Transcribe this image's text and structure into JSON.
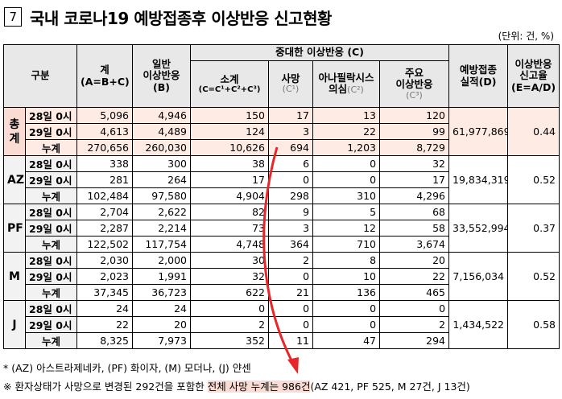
{
  "title_number": "7",
  "title": "국내 코로나19 예방접종후 이상반응 신고현황",
  "unit": "(단위: 건, %)",
  "headers": {
    "gubun": "구분",
    "total": "계",
    "total_sub": "(A=B+C)",
    "general": "일반",
    "general2": "이상반응",
    "general_sub": "(B)",
    "serious": "중대한 이상반응 (C)",
    "subtotal": "소계",
    "subtotal_sub": "(C=C¹+C²+C³)",
    "death": "사망",
    "death_sub": "(C¹)",
    "anaph": "아나필락시스",
    "anaph2": "의심",
    "anaph_sub": "(C²)",
    "major": "주요",
    "major2": "이상반응",
    "major_sub": "(C³)",
    "vacc": "예방접종",
    "vacc2": "실적(D)",
    "rate": "이상반응",
    "rate2": "신고율",
    "rate_sub": "(E=A/D)"
  },
  "groups": [
    {
      "name": "총계",
      "vaccinations": "61,977,869",
      "rate": "0.44",
      "rows": [
        {
          "label": "28일 0시",
          "cells": [
            "5,096",
            "4,946",
            "150",
            "17",
            "13",
            "120"
          ]
        },
        {
          "label": "29일 0시",
          "cells": [
            "4,613",
            "4,489",
            "124",
            "3",
            "22",
            "99"
          ]
        },
        {
          "label": "누계",
          "cells": [
            "270,656",
            "260,030",
            "10,626",
            "694",
            "1,203",
            "8,729"
          ]
        }
      ]
    },
    {
      "name": "AZ",
      "vaccinations": "19,834,319",
      "rate": "0.52",
      "rows": [
        {
          "label": "28일 0시",
          "cells": [
            "338",
            "300",
            "38",
            "6",
            "0",
            "32"
          ]
        },
        {
          "label": "29일 0시",
          "cells": [
            "281",
            "264",
            "17",
            "0",
            "0",
            "17"
          ]
        },
        {
          "label": "누계",
          "cells": [
            "102,484",
            "97,580",
            "4,904",
            "298",
            "310",
            "4,296"
          ]
        }
      ]
    },
    {
      "name": "PF",
      "vaccinations": "33,552,994",
      "rate": "0.37",
      "rows": [
        {
          "label": "28일 0시",
          "cells": [
            "2,704",
            "2,622",
            "82",
            "9",
            "5",
            "68"
          ]
        },
        {
          "label": "29일 0시",
          "cells": [
            "2,287",
            "2,214",
            "73",
            "3",
            "12",
            "58"
          ]
        },
        {
          "label": "누계",
          "cells": [
            "122,502",
            "117,754",
            "4,748",
            "364",
            "710",
            "3,674"
          ]
        }
      ]
    },
    {
      "name": "M",
      "vaccinations": "7,156,034",
      "rate": "0.52",
      "rows": [
        {
          "label": "28일 0시",
          "cells": [
            "2,030",
            "2,000",
            "30",
            "2",
            "8",
            "20"
          ]
        },
        {
          "label": "29일 0시",
          "cells": [
            "2,023",
            "1,991",
            "32",
            "0",
            "10",
            "22"
          ]
        },
        {
          "label": "누계",
          "cells": [
            "37,345",
            "36,723",
            "622",
            "21",
            "136",
            "465"
          ]
        }
      ]
    },
    {
      "name": "J",
      "vaccinations": "1,434,522",
      "rate": "0.58",
      "rows": [
        {
          "label": "28일 0시",
          "cells": [
            "24",
            "24",
            "0",
            "0",
            "0",
            "0"
          ]
        },
        {
          "label": "29일 0시",
          "cells": [
            "22",
            "20",
            "2",
            "0",
            "0",
            "2"
          ]
        },
        {
          "label": "누계",
          "cells": [
            "8,325",
            "7,973",
            "352",
            "11",
            "47",
            "294"
          ]
        }
      ]
    }
  ],
  "footnote1": "* (AZ) 아스트라제네카, (PF) 화이자, (M) 모더나, (J) 얀센",
  "footnote2_pre": "※ 환자상태가 사망으로 변경된 292건을 포함한 ",
  "footnote2_highlight": "전체 사망 누계는 986건",
  "footnote2_post": "(AZ 421, PF 525, M 27건, J 13건)",
  "colors": {
    "highlight": "#fadcd4",
    "arrow": "#e8262a",
    "header_bg": "#e8e8e8"
  }
}
